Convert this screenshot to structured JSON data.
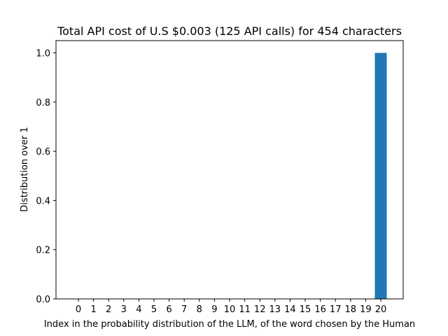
{
  "chart_data": {
    "type": "bar",
    "title": "Total API cost of U.S $0.003 (125 API calls) for 454 characters",
    "xlabel": "Index in the probability distribution of the LLM, of the word chosen by the Human",
    "ylabel": "Distribution over 1",
    "categories": [
      "0",
      "1",
      "2",
      "3",
      "4",
      "5",
      "6",
      "7",
      "8",
      "9",
      "10",
      "11",
      "12",
      "13",
      "14",
      "15",
      "16",
      "17",
      "18",
      "19",
      "20"
    ],
    "values": [
      0,
      0,
      0,
      0,
      0,
      0,
      0,
      0,
      0,
      0,
      0,
      0,
      0,
      0,
      0,
      0,
      0,
      0,
      0,
      0,
      1.0
    ],
    "ylim": [
      0,
      1.05
    ],
    "yticks": [
      "0.0",
      "0.2",
      "0.4",
      "0.6",
      "0.8",
      "1.0"
    ],
    "bar_color": "#1f77b4",
    "grid": false,
    "legend": "none"
  }
}
